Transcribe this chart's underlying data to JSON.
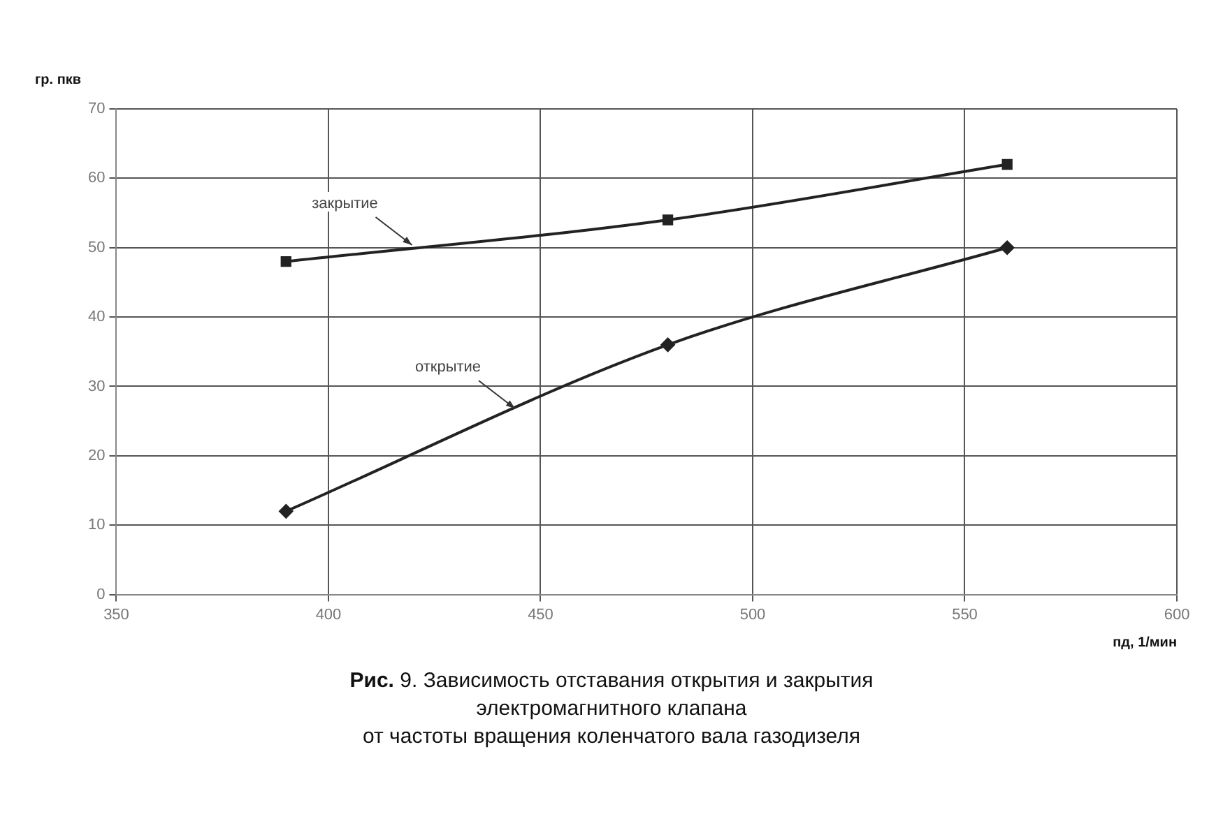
{
  "chart_data": {
    "type": "line",
    "title": "Рис. 9. Зависимость отставания открытия и закрытия\nэлектромагнитного клапана\nот частоты вращения коленчатого вала газодизеля",
    "xlabel": "пд, 1/мин",
    "ylabel": "гр. пкв",
    "x": [
      390,
      480,
      560
    ],
    "series": [
      {
        "name": "закрытие",
        "color": "#222222",
        "marker": "square",
        "values": [
          48,
          54,
          62
        ]
      },
      {
        "name": "открытие",
        "color": "#222222",
        "marker": "diamond",
        "values": [
          12,
          36,
          50
        ]
      }
    ],
    "xlim": [
      350,
      600
    ],
    "xticks": [
      350,
      400,
      450,
      500,
      550,
      600
    ],
    "ylim": [
      0,
      70
    ],
    "yticks": [
      0,
      10,
      20,
      30,
      40,
      50,
      60,
      70
    ],
    "grid": true,
    "legend": false,
    "line_style": "solid"
  }
}
